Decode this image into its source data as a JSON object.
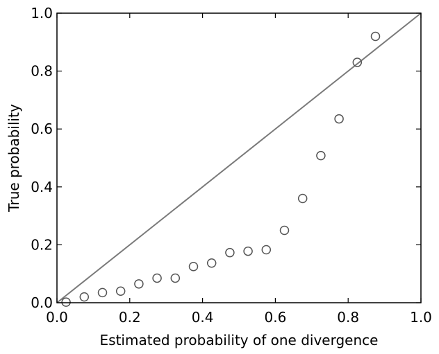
{
  "chart_data": {
    "type": "scatter",
    "title": "",
    "xlabel": "Estimated probability of one divergence",
    "ylabel": "True probability",
    "xlim": [
      0.0,
      1.0
    ],
    "ylim": [
      0.0,
      1.0
    ],
    "grid": false,
    "x_ticks": [
      0.0,
      0.2,
      0.4,
      0.6,
      0.8,
      1.0
    ],
    "y_ticks": [
      0.0,
      0.2,
      0.4,
      0.6,
      0.8,
      1.0
    ],
    "x_tick_labels": [
      "0.0",
      "0.2",
      "0.4",
      "0.6",
      "0.8",
      "1.0"
    ],
    "y_tick_labels": [
      "0.0",
      "0.2",
      "0.4",
      "0.6",
      "0.8",
      "1.0"
    ],
    "reference_line": {
      "x": [
        0.0,
        1.0
      ],
      "y": [
        0.0,
        1.0
      ],
      "color": "#7a7a7a"
    },
    "marker_color": "#555555",
    "series": [
      {
        "x": [
          0.025,
          0.075,
          0.125,
          0.175,
          0.225,
          0.275,
          0.325,
          0.375,
          0.425,
          0.475,
          0.525,
          0.575,
          0.625,
          0.675,
          0.725,
          0.775,
          0.825,
          0.875
        ],
        "y": [
          0.002,
          0.02,
          0.035,
          0.04,
          0.065,
          0.085,
          0.085,
          0.125,
          0.137,
          0.173,
          0.178,
          0.183,
          0.25,
          0.36,
          0.508,
          0.635,
          0.83,
          0.92
        ]
      }
    ]
  }
}
